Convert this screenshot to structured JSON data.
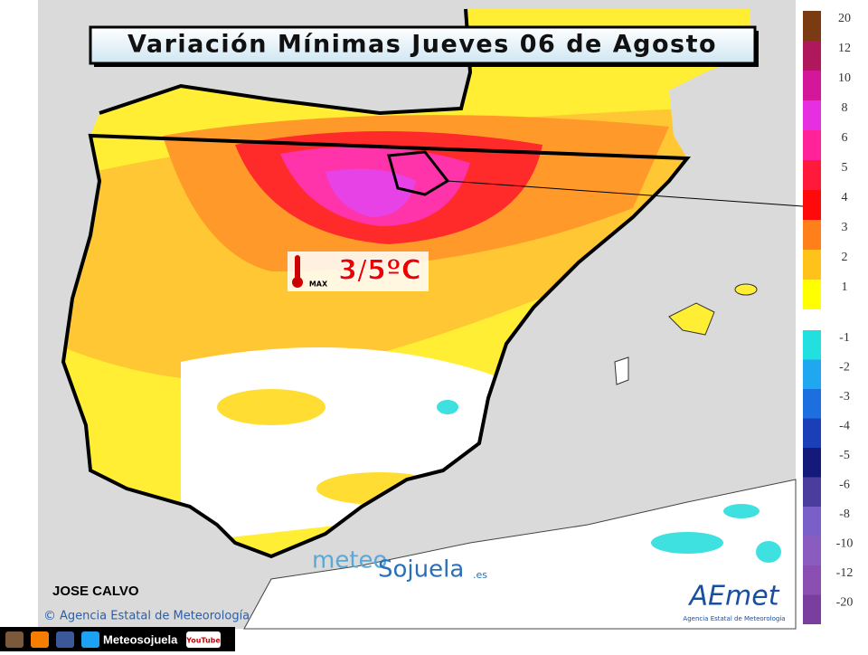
{
  "header": {
    "title": "Variación Mínimas Jueves 06 de Agosto"
  },
  "annotation": {
    "label": "MAX",
    "text": "3/5ºC"
  },
  "credits": {
    "author": "JOSE CALVO",
    "source": "Agencia Estatal de Meteorología",
    "copyright": "©"
  },
  "watermark": {
    "part1": "meteo",
    "part2": "Sojuela",
    "suffix": ".es"
  },
  "logo": {
    "name": "AEmet",
    "caption": "Agencia Estatal de Meteorología"
  },
  "footer": {
    "site": "Meteosojuela",
    "video": "YouTube"
  },
  "legend": {
    "upper": [
      {
        "label": "20",
        "color": "#7a3b12"
      },
      {
        "label": "12",
        "color": "#b0185c"
      },
      {
        "label": "10",
        "color": "#d4169a"
      },
      {
        "label": "8",
        "color": "#e62fe0"
      },
      {
        "label": "6",
        "color": "#ff2299"
      },
      {
        "label": "5",
        "color": "#ff1a3c"
      },
      {
        "label": "4",
        "color": "#ff0a0a"
      },
      {
        "label": "3",
        "color": "#ff7f1a"
      },
      {
        "label": "2",
        "color": "#ffc21a"
      },
      {
        "label": "1",
        "color": "#ffff00"
      }
    ],
    "lower": [
      {
        "label": "-1",
        "color": "#22e0e0"
      },
      {
        "label": "-2",
        "color": "#1fa8f0"
      },
      {
        "label": "-3",
        "color": "#1d6fe0"
      },
      {
        "label": "-4",
        "color": "#1a3fb8"
      },
      {
        "label": "-5",
        "color": "#151a7a"
      },
      {
        "label": "-6",
        "color": "#4a3d9e"
      },
      {
        "label": "-8",
        "color": "#7a5fc8"
      },
      {
        "label": "-10",
        "color": "#8a5cc0"
      },
      {
        "label": "-12",
        "color": "#8a4fb0"
      },
      {
        "label": "-20",
        "color": "#7a3f9e"
      }
    ]
  }
}
